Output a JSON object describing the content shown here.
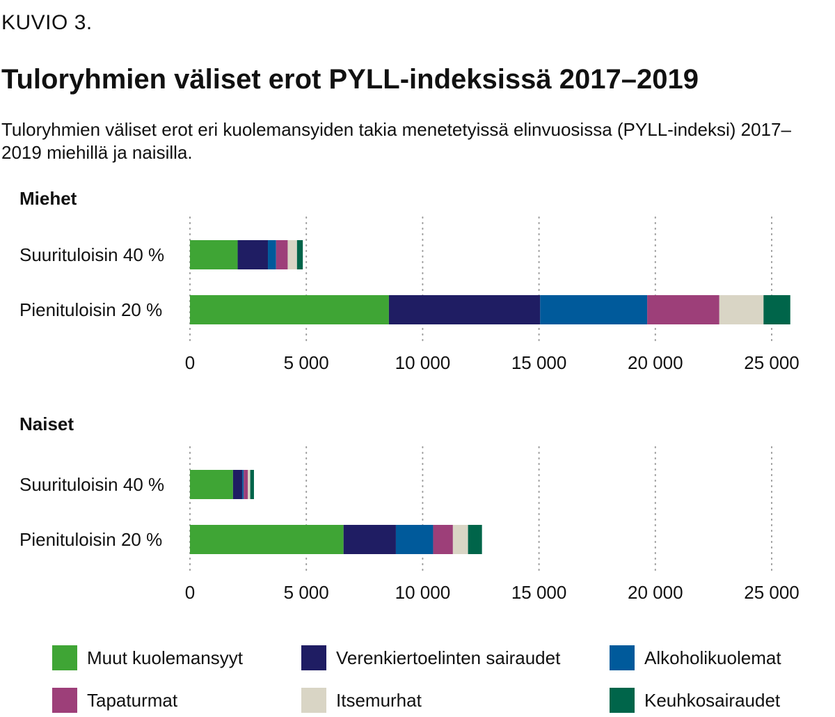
{
  "header": {
    "figure_label": "KUVIO 3.",
    "title": "Tuloryhmien väliset erot PYLL-indeksissä 2017–2019",
    "subtitle": "Tuloryhmien väliset erot eri kuolemansyiden takia menetetyissä elinvuosissa (PYLL-indeksi) 2017–2019 miehillä ja naisilla."
  },
  "legend": [
    {
      "label": "Muut kuolemansyyt",
      "color": "#3fa535"
    },
    {
      "label": "Verenkiertoelinten sairaudet",
      "color": "#1f1d63"
    },
    {
      "label": "Alkoholikuolemat",
      "color": "#005a9b"
    },
    {
      "label": "Tapaturmat",
      "color": "#9d3f79"
    },
    {
      "label": "Itsemurhat",
      "color": "#d9d5c5"
    },
    {
      "label": "Keuhkosairaudet",
      "color": "#00654a"
    }
  ],
  "chart_data": [
    {
      "type": "bar",
      "orientation": "horizontal",
      "stacked": true,
      "title": "Miehet",
      "categories": [
        "Suurituloisin 40 %",
        "Pienituloisin 20 %"
      ],
      "xlim": [
        0,
        25000
      ],
      "xticks": [
        "0",
        "5 000",
        "10 000",
        "15 000",
        "20 000",
        "25 000"
      ],
      "grid": "vertical dotted",
      "series": [
        {
          "name": "Muut kuolemansyyt",
          "values": [
            2050,
            8550
          ]
        },
        {
          "name": "Verenkiertoelinten sairaudet",
          "values": [
            1300,
            6500
          ]
        },
        {
          "name": "Alkoholikuolemat",
          "values": [
            350,
            4600
          ]
        },
        {
          "name": "Tapaturmat",
          "values": [
            500,
            3100
          ]
        },
        {
          "name": "Itsemurhat",
          "values": [
            400,
            1900
          ]
        },
        {
          "name": "Keuhkosairaudet",
          "values": [
            250,
            1150
          ]
        }
      ]
    },
    {
      "type": "bar",
      "orientation": "horizontal",
      "stacked": true,
      "title": "Naiset",
      "categories": [
        "Suurituloisin 40 %",
        "Pienituloisin 20 %"
      ],
      "xlim": [
        0,
        25000
      ],
      "xticks": [
        "0",
        "5 000",
        "10 000",
        "15 000",
        "20 000",
        "25 000"
      ],
      "grid": "vertical dotted",
      "series": [
        {
          "name": "Muut kuolemansyyt",
          "values": [
            1850,
            6600
          ]
        },
        {
          "name": "Verenkiertoelinten sairaudet",
          "values": [
            400,
            2250
          ]
        },
        {
          "name": "Alkoholikuolemat",
          "values": [
            60,
            1600
          ]
        },
        {
          "name": "Tapaturmat",
          "values": [
            180,
            850
          ]
        },
        {
          "name": "Itsemurhat",
          "values": [
            100,
            650
          ]
        },
        {
          "name": "Keuhkosairaudet",
          "values": [
            160,
            600
          ]
        }
      ]
    }
  ]
}
